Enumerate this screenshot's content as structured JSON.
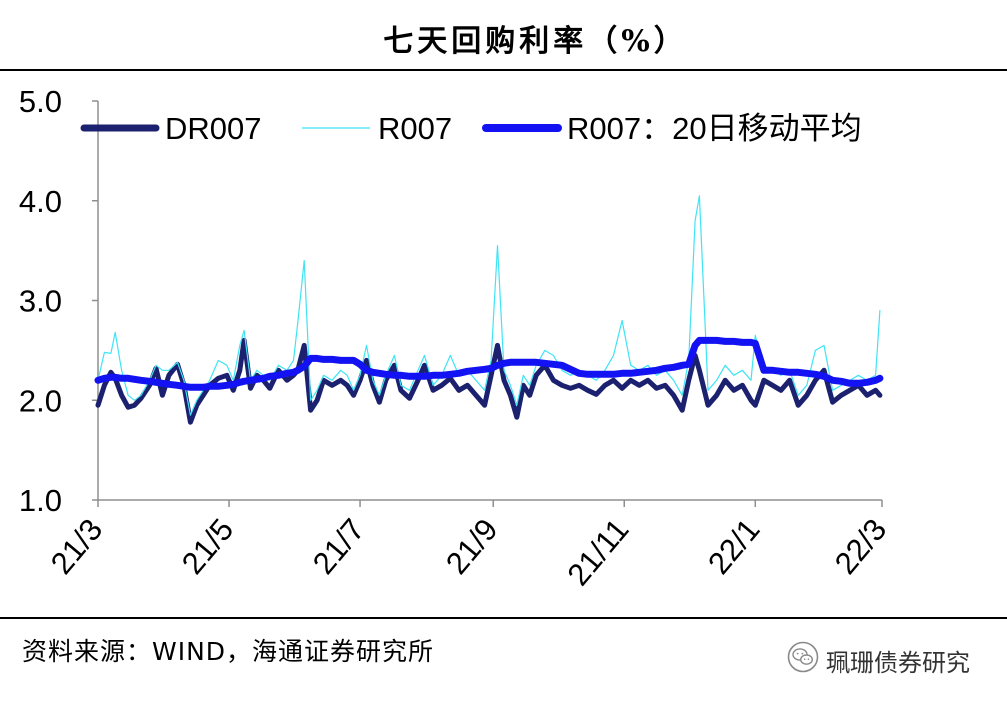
{
  "chart_data": {
    "type": "line",
    "title": "七天回购利率（%）",
    "x": [
      "2021-03-01",
      "2021-03-04",
      "2021-03-07",
      "2021-03-09",
      "2021-03-12",
      "2021-03-15",
      "2021-03-18",
      "2021-03-21",
      "2021-03-25",
      "2021-03-28",
      "2021-03-31",
      "2021-04-03",
      "2021-04-07",
      "2021-04-10",
      "2021-04-13",
      "2021-04-16",
      "2021-04-19",
      "2021-04-22",
      "2021-04-26",
      "2021-04-30",
      "2021-05-03",
      "2021-05-06",
      "2021-05-08",
      "2021-05-11",
      "2021-05-14",
      "2021-05-17",
      "2021-05-20",
      "2021-05-24",
      "2021-05-28",
      "2021-05-31",
      "2021-06-02",
      "2021-06-05",
      "2021-06-08",
      "2021-06-11",
      "2021-06-14",
      "2021-06-18",
      "2021-06-22",
      "2021-06-25",
      "2021-06-28",
      "2021-07-01",
      "2021-07-04",
      "2021-07-07",
      "2021-07-10",
      "2021-07-13",
      "2021-07-17",
      "2021-07-20",
      "2021-07-24",
      "2021-07-28",
      "2021-07-31",
      "2021-08-04",
      "2021-08-08",
      "2021-08-12",
      "2021-08-16",
      "2021-08-20",
      "2021-08-24",
      "2021-08-28",
      "2021-08-31",
      "2021-09-03",
      "2021-09-06",
      "2021-09-09",
      "2021-09-12",
      "2021-09-15",
      "2021-09-18",
      "2021-09-21",
      "2021-09-25",
      "2021-09-29",
      "2021-10-03",
      "2021-10-07",
      "2021-10-11",
      "2021-10-15",
      "2021-10-19",
      "2021-10-23",
      "2021-10-27",
      "2021-10-31",
      "2021-11-04",
      "2021-11-08",
      "2021-11-12",
      "2021-11-16",
      "2021-11-20",
      "2021-11-24",
      "2021-11-28",
      "2021-12-01",
      "2021-12-04",
      "2021-12-06",
      "2021-12-10",
      "2021-12-14",
      "2021-12-18",
      "2021-12-22",
      "2021-12-26",
      "2021-12-30",
      "2022-01-01",
      "2022-01-05",
      "2022-01-09",
      "2022-01-13",
      "2022-01-17",
      "2022-01-21",
      "2022-01-25",
      "2022-01-29",
      "2022-02-02",
      "2022-02-06",
      "2022-02-10",
      "2022-02-14",
      "2022-02-18",
      "2022-02-22",
      "2022-02-26",
      "2022-02-28"
    ],
    "x_range": [
      "2021-03-01",
      "2022-03-01"
    ],
    "x_ticks": [
      "21/3",
      "21/5",
      "21/7",
      "21/9",
      "21/11",
      "22/1",
      "22/3"
    ],
    "ylim": [
      1.0,
      5.0
    ],
    "y_ticks": [
      "5.0",
      "4.0",
      "3.0",
      "2.0",
      "1.0"
    ],
    "grid": false,
    "legend": "top",
    "series": [
      {
        "name": "DR007",
        "color": "#1b216e",
        "values": [
          1.95,
          2.15,
          2.28,
          2.22,
          2.05,
          1.93,
          1.95,
          2.02,
          2.15,
          2.32,
          2.05,
          2.25,
          2.36,
          2.15,
          1.78,
          1.95,
          2.05,
          2.15,
          2.22,
          2.25,
          2.1,
          2.3,
          2.6,
          2.12,
          2.25,
          2.2,
          2.12,
          2.3,
          2.2,
          2.25,
          2.3,
          2.55,
          1.9,
          2.0,
          2.2,
          2.15,
          2.2,
          2.15,
          2.05,
          2.2,
          2.4,
          2.15,
          1.98,
          2.2,
          2.35,
          2.1,
          2.02,
          2.2,
          2.35,
          2.1,
          2.15,
          2.22,
          2.1,
          2.15,
          2.05,
          1.95,
          2.25,
          2.55,
          2.2,
          2.05,
          1.83,
          2.15,
          2.05,
          2.25,
          2.35,
          2.2,
          2.15,
          2.12,
          2.15,
          2.1,
          2.06,
          2.15,
          2.2,
          2.12,
          2.2,
          2.15,
          2.2,
          2.12,
          2.15,
          2.05,
          1.9,
          2.2,
          2.45,
          2.3,
          1.95,
          2.05,
          2.2,
          2.1,
          2.15,
          2.0,
          1.95,
          2.2,
          2.15,
          2.1,
          2.2,
          1.95,
          2.05,
          2.2,
          2.3,
          1.98,
          2.05,
          2.1,
          2.15,
          2.05,
          2.1,
          2.05
        ]
      },
      {
        "name": "R007",
        "color": "#3fe4f4",
        "values": [
          2.2,
          2.48,
          2.47,
          2.68,
          2.3,
          2.05,
          2.0,
          2.05,
          2.2,
          2.35,
          2.3,
          2.3,
          2.38,
          2.2,
          1.85,
          2.0,
          2.1,
          2.2,
          2.4,
          2.35,
          2.2,
          2.55,
          2.7,
          2.2,
          2.3,
          2.25,
          2.2,
          2.35,
          2.3,
          2.4,
          2.78,
          3.4,
          2.0,
          2.1,
          2.25,
          2.2,
          2.3,
          2.25,
          2.1,
          2.25,
          2.55,
          2.2,
          2.05,
          2.25,
          2.45,
          2.15,
          2.1,
          2.3,
          2.45,
          2.15,
          2.25,
          2.45,
          2.25,
          2.3,
          2.2,
          2.1,
          2.4,
          3.55,
          2.3,
          2.15,
          1.95,
          2.25,
          2.15,
          2.35,
          2.5,
          2.45,
          2.3,
          2.25,
          2.3,
          2.25,
          2.2,
          2.3,
          2.45,
          2.8,
          2.35,
          2.3,
          2.35,
          2.25,
          2.3,
          2.2,
          2.05,
          2.4,
          3.8,
          4.05,
          2.1,
          2.2,
          2.35,
          2.25,
          2.3,
          2.2,
          2.65,
          2.3,
          2.3,
          2.25,
          2.3,
          2.05,
          2.15,
          2.5,
          2.55,
          2.1,
          2.15,
          2.2,
          2.25,
          2.2,
          2.25,
          2.9
        ]
      },
      {
        "name": "R007：20日移动平均",
        "color": "#1212f2",
        "values": [
          2.2,
          2.22,
          2.23,
          2.23,
          2.22,
          2.22,
          2.21,
          2.2,
          2.19,
          2.18,
          2.17,
          2.16,
          2.15,
          2.14,
          2.13,
          2.13,
          2.13,
          2.14,
          2.14,
          2.15,
          2.16,
          2.18,
          2.19,
          2.2,
          2.21,
          2.22,
          2.24,
          2.25,
          2.27,
          2.28,
          2.3,
          2.34,
          2.42,
          2.42,
          2.41,
          2.41,
          2.4,
          2.4,
          2.4,
          2.36,
          2.3,
          2.28,
          2.27,
          2.26,
          2.25,
          2.25,
          2.24,
          2.24,
          2.24,
          2.25,
          2.25,
          2.26,
          2.27,
          2.29,
          2.3,
          2.31,
          2.32,
          2.35,
          2.37,
          2.38,
          2.38,
          2.38,
          2.38,
          2.38,
          2.37,
          2.36,
          2.35,
          2.31,
          2.27,
          2.26,
          2.26,
          2.26,
          2.26,
          2.27,
          2.27,
          2.28,
          2.29,
          2.3,
          2.32,
          2.33,
          2.35,
          2.36,
          2.55,
          2.6,
          2.6,
          2.6,
          2.59,
          2.59,
          2.58,
          2.58,
          2.57,
          2.3,
          2.3,
          2.29,
          2.28,
          2.28,
          2.27,
          2.26,
          2.24,
          2.2,
          2.19,
          2.17,
          2.17,
          2.18,
          2.2,
          2.22
        ]
      }
    ]
  },
  "source": "资料来源：WIND，海通证券研究所",
  "watermark": {
    "text": "珮珊债券研究",
    "icon": "wechat-icon"
  }
}
